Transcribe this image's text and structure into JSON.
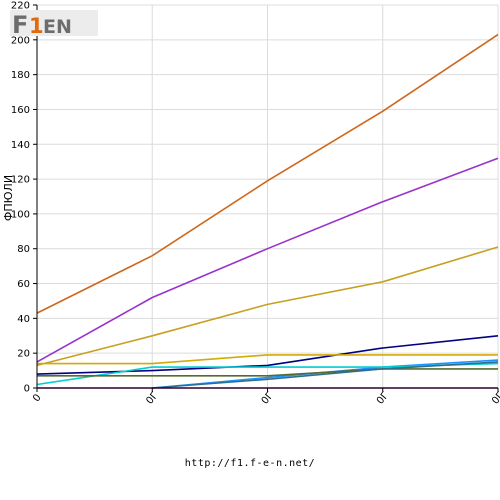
{
  "footer": {
    "url": "http://f1.f-e-n.net/"
  },
  "logo": {
    "text": "F1FEN",
    "mark": "F",
    "number": "1",
    "rest": "EN"
  },
  "chart_data": {
    "type": "line",
    "ylabel": "ФПЮЛИ",
    "xlabel": "",
    "ylim": [
      0,
      220
    ],
    "yticks": [
      0,
      20,
      40,
      60,
      80,
      100,
      120,
      140,
      160,
      180,
      200,
      220
    ],
    "x": [
      0,
      1,
      2,
      3,
      4
    ],
    "xtick_labels": [
      "0",
      "0Г",
      "0Г",
      "0Г",
      "0Г"
    ],
    "grid": true,
    "series": [
      {
        "color": "#d0661a",
        "values": [
          43,
          76,
          119,
          159,
          203
        ]
      },
      {
        "color": "#9932cc",
        "values": [
          15,
          52,
          80,
          107,
          132
        ]
      },
      {
        "color": "#c8a020",
        "values": [
          13,
          30,
          48,
          61,
          81
        ]
      },
      {
        "color": "#000080",
        "values": [
          8,
          10,
          13,
          23,
          30
        ]
      },
      {
        "color": "#d4aa00",
        "values": [
          14,
          14,
          19,
          19,
          19
        ]
      },
      {
        "color": "#1e90ff",
        "values": [
          null,
          0,
          6,
          12,
          16
        ]
      },
      {
        "color": "#00ced1",
        "values": [
          2,
          12,
          12,
          12,
          14
        ]
      },
      {
        "color": "#556b2f",
        "values": [
          7,
          7,
          7,
          11,
          11
        ]
      },
      {
        "color": "#2e6f8e",
        "values": [
          null,
          0,
          5,
          11,
          15
        ]
      },
      {
        "color": "#8b008b",
        "values": [
          0,
          0,
          0,
          0,
          0
        ]
      }
    ]
  }
}
